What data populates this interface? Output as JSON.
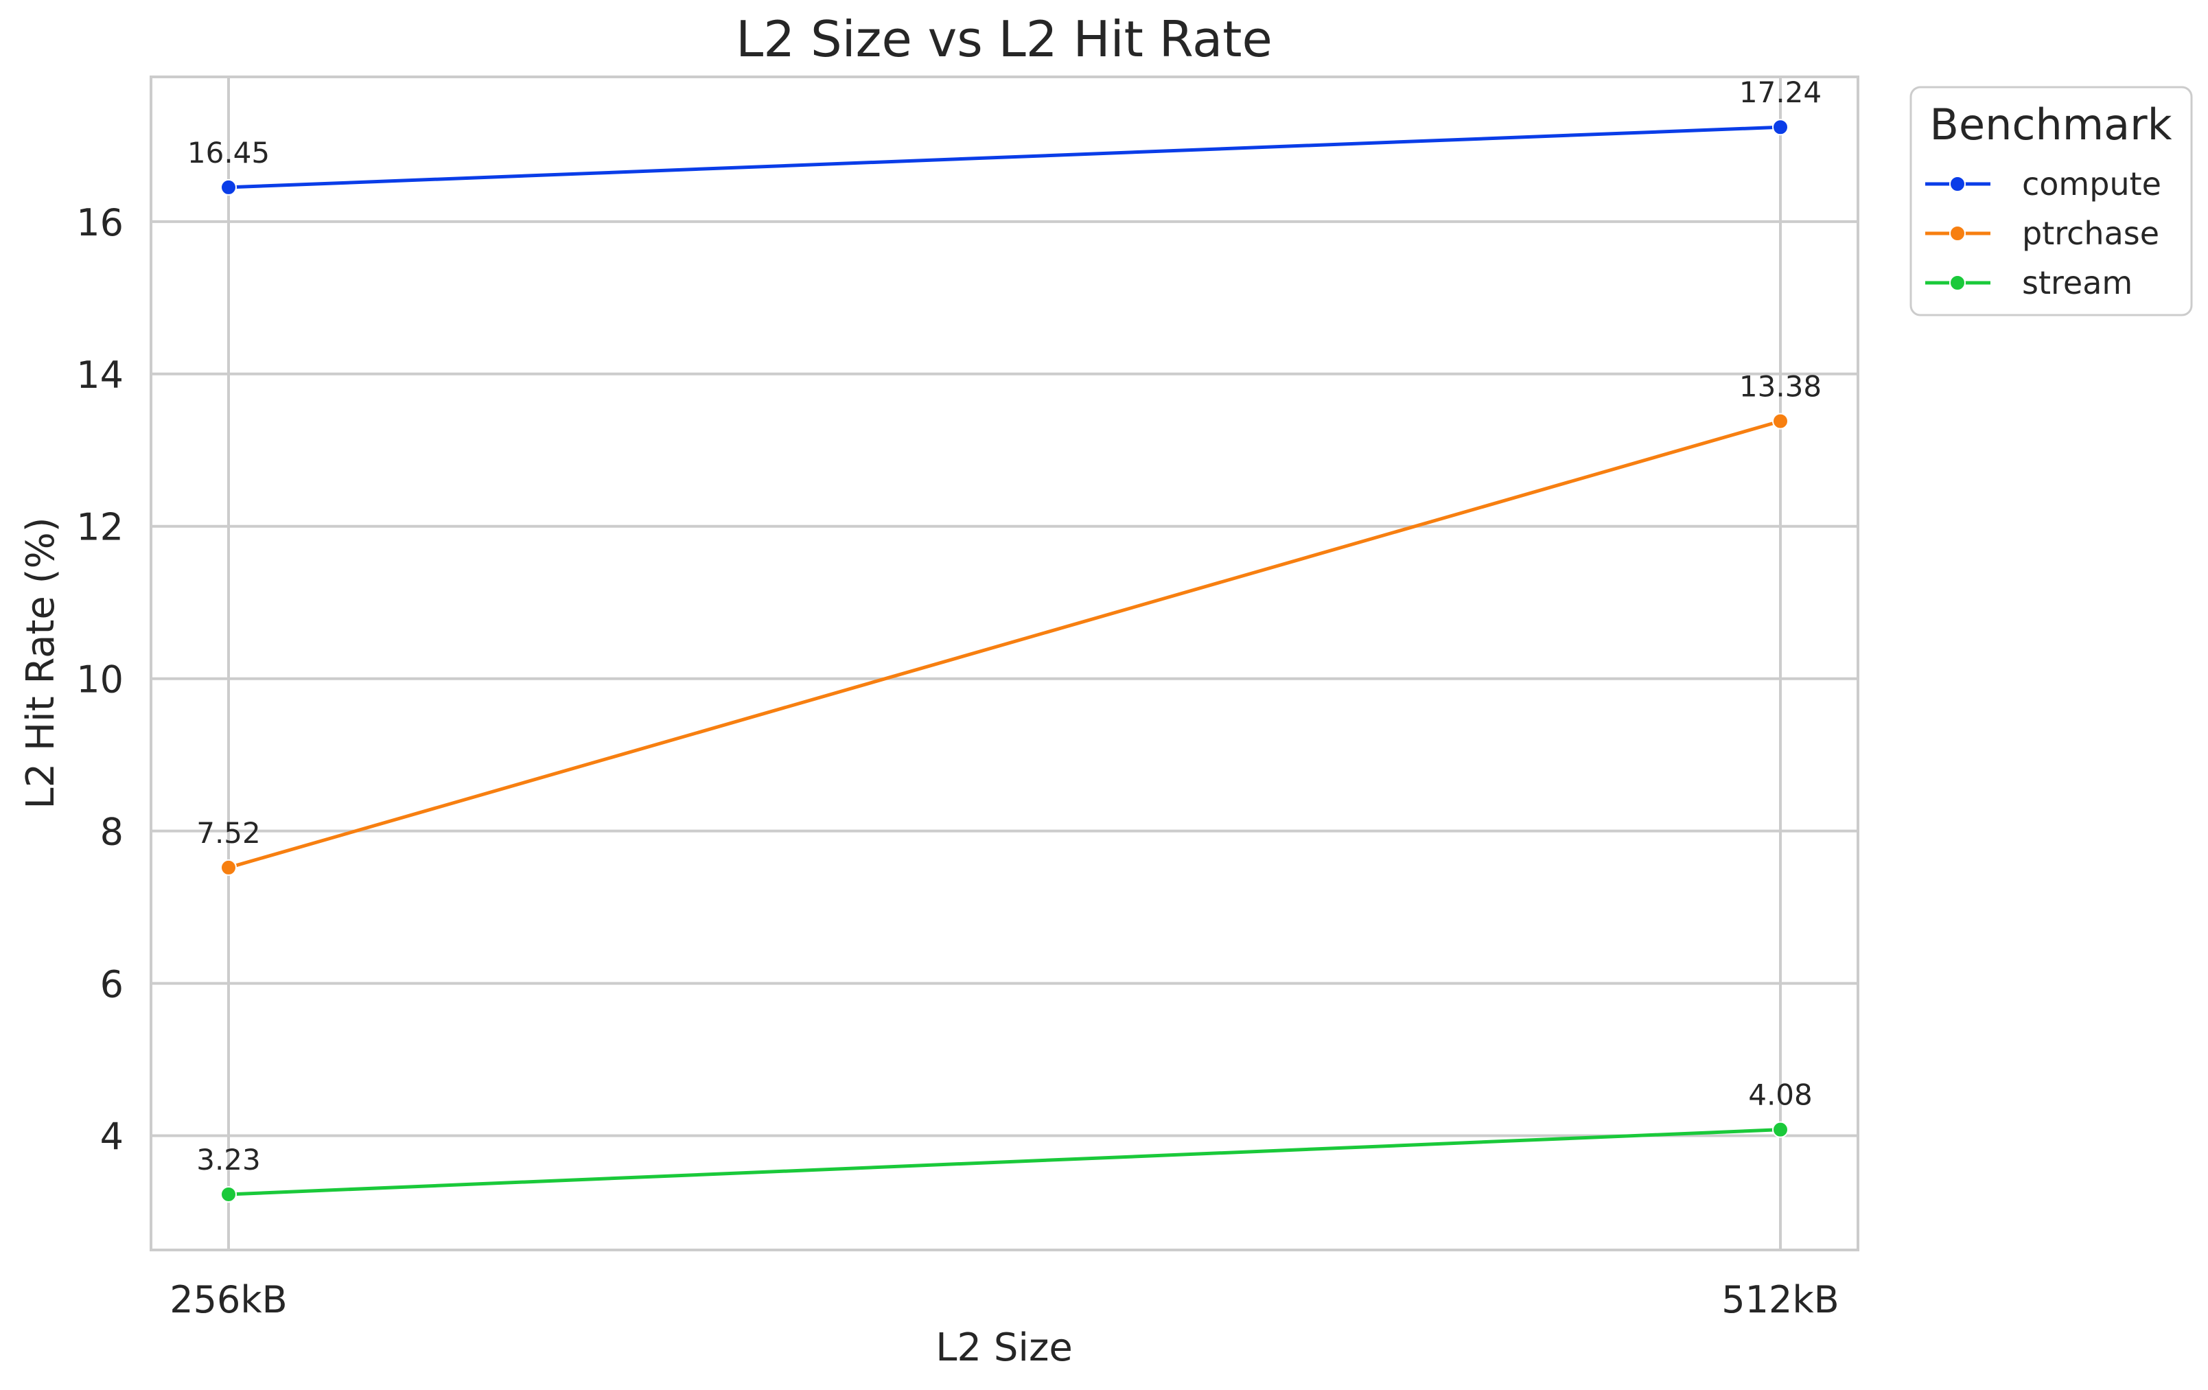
{
  "chart_data": {
    "type": "line",
    "title": "L2 Size vs L2 Hit Rate",
    "xlabel": "L2 Size",
    "ylabel": "L2 Hit Rate (%)",
    "categories": [
      "256kB",
      "512kB"
    ],
    "ylim": [
      2.5,
      17.9
    ],
    "yticks": [
      4,
      6,
      8,
      10,
      12,
      14,
      16
    ],
    "grid": true,
    "legend": {
      "title": "Benchmark",
      "placement": "outside-top-right"
    },
    "series": [
      {
        "name": "compute",
        "values": [
          16.45,
          17.24
        ],
        "labels": [
          "16.45",
          "17.24"
        ],
        "color": "#0a3de8"
      },
      {
        "name": "ptrchase",
        "values": [
          7.52,
          13.38
        ],
        "labels": [
          "7.52",
          "13.38"
        ],
        "color": "#f77f10"
      },
      {
        "name": "stream",
        "values": [
          3.23,
          4.08
        ],
        "labels": [
          "3.23",
          "4.08"
        ],
        "color": "#1ac93a"
      }
    ]
  },
  "style": {
    "grid_color": "#cccccc",
    "spine_color": "#cccccc",
    "text_color": "#262626",
    "background": "#ffffff"
  }
}
